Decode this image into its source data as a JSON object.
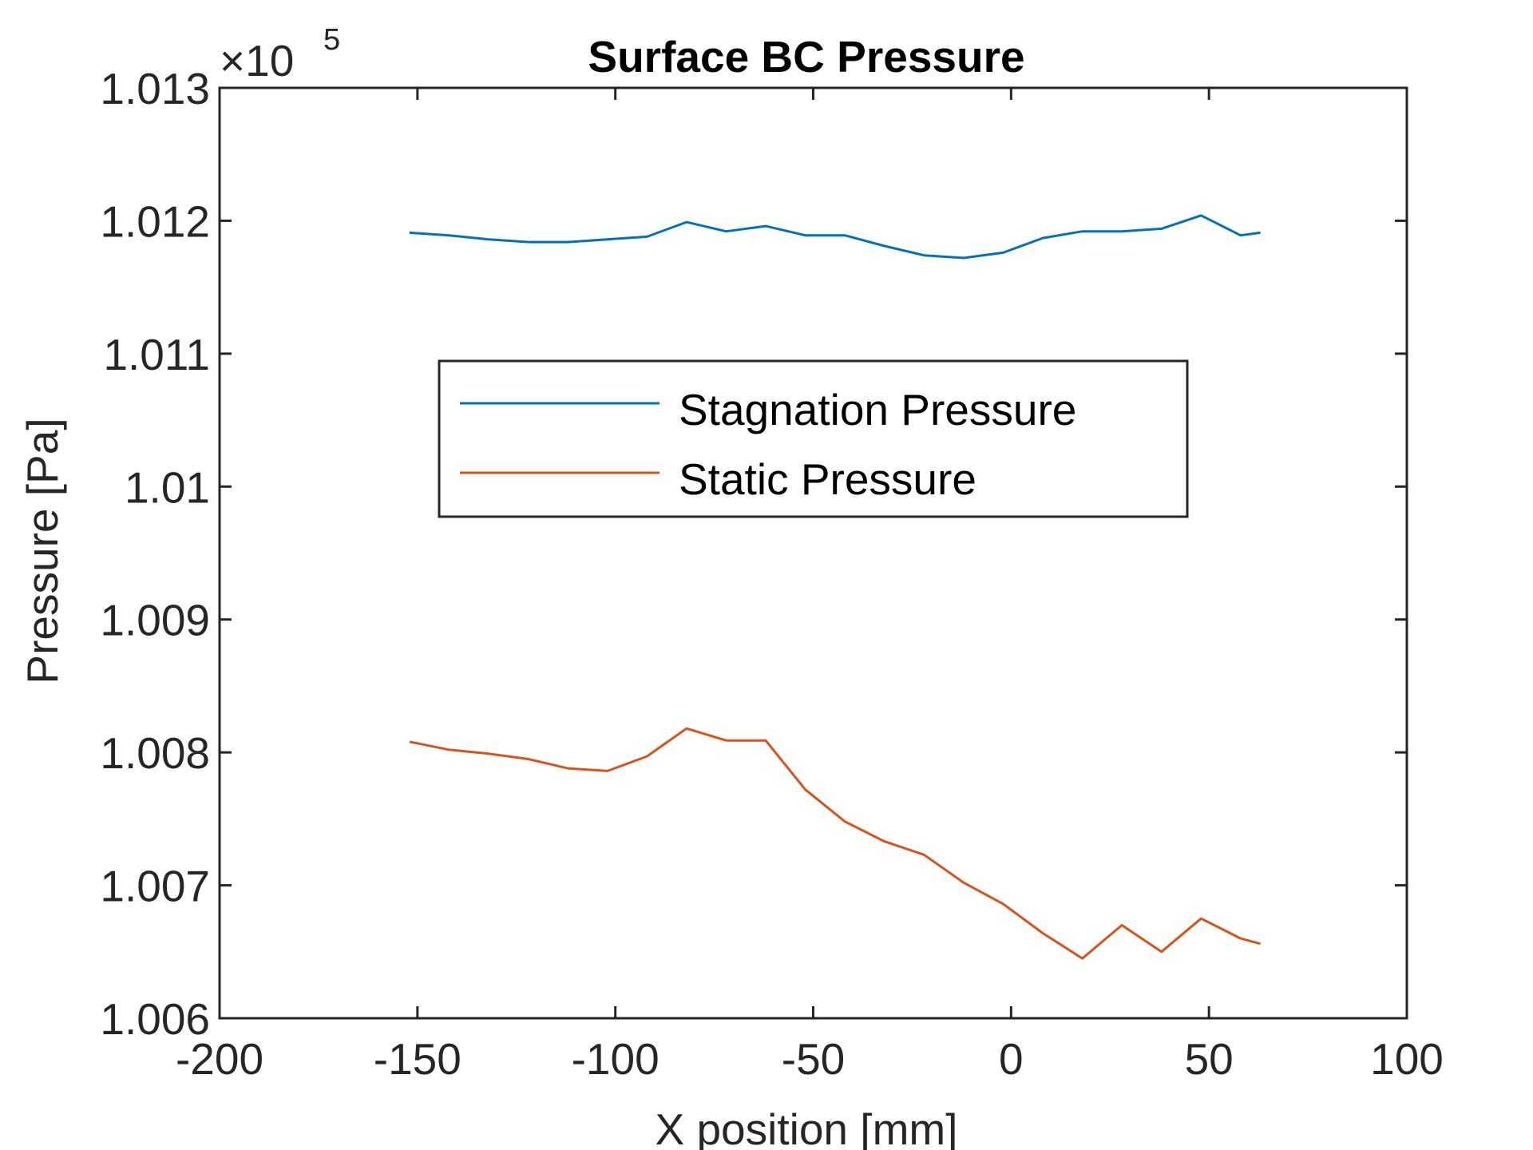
{
  "chart_data": {
    "type": "line",
    "title": "Surface BC Pressure",
    "xlabel": "X position [mm]",
    "ylabel": "Pressure [Pa]",
    "y_exponent_base": "×10",
    "y_exponent_power": "5",
    "xlim": [
      -200,
      100
    ],
    "ylim": [
      1.006,
      1.013
    ],
    "xticks": [
      -200,
      -150,
      -100,
      -50,
      0,
      50,
      100
    ],
    "xtick_labels": [
      "-200",
      "-150",
      "-100",
      "-50",
      "0",
      "50",
      "100"
    ],
    "yticks": [
      1.006,
      1.007,
      1.008,
      1.009,
      1.01,
      1.011,
      1.012,
      1.013
    ],
    "ytick_labels": [
      "1.006",
      "1.007",
      "1.008",
      "1.009",
      "1.01",
      "1.011",
      "1.012",
      "1.013"
    ],
    "grid": false,
    "legend_position": "center",
    "x": [
      -152,
      -142,
      -132,
      -122,
      -112,
      -102,
      -92,
      -82,
      -72,
      -62,
      -52,
      -42,
      -32,
      -22,
      -12,
      -2,
      8,
      18,
      28,
      38,
      48,
      58,
      63
    ],
    "series": [
      {
        "name": "Stagnation Pressure",
        "color": "#0072BD",
        "values": [
          1.01191,
          1.01189,
          1.01186,
          1.01184,
          1.01184,
          1.01186,
          1.01188,
          1.01199,
          1.01192,
          1.01196,
          1.01189,
          1.01189,
          1.01181,
          1.01174,
          1.01172,
          1.01176,
          1.01187,
          1.01192,
          1.01192,
          1.01194,
          1.01204,
          1.01189,
          1.01191
        ]
      },
      {
        "name": "Static Pressure",
        "color": "#D95319",
        "values": [
          1.00808,
          1.00802,
          1.00799,
          1.00795,
          1.00788,
          1.00786,
          1.00797,
          1.00818,
          1.00809,
          1.00809,
          1.00772,
          1.00748,
          1.00733,
          1.00723,
          1.00702,
          1.00686,
          1.00664,
          1.00645,
          1.0067,
          1.0065,
          1.00675,
          1.0066,
          1.00656
        ]
      }
    ]
  }
}
